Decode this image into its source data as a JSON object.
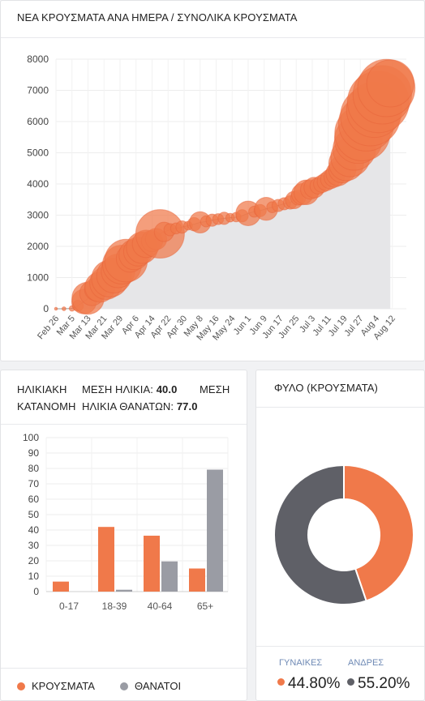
{
  "cases_card": {
    "title": "ΝΕΑ ΚΡΟΥΣΜΑΤΑ ΑΝΑ ΗΜΕΡΑ / ΣΥΝΟΛΙΚΑ ΚΡΟΥΣΜΑΤΑ"
  },
  "age_card": {
    "title": "ΗΛΙΚΙΑΚΗ ΚΑΤΑΝΟΜΗ",
    "mean_age_label": "ΜΕΣΗ ΗΛΙΚΙΑ:",
    "mean_age_value": "40.0",
    "mean_death_word": "ΜΕΣΗ",
    "mean_death_label": "ΗΛΙΚΙΑ ΘΑΝΑΤΩΝ:",
    "mean_death_value": "77.0",
    "legend": [
      {
        "label": "ΚΡΟΥΣΜΑΤΑ",
        "color": "#f0794a"
      },
      {
        "label": "ΘΑΝΑΤΟΙ",
        "color": "#9a9ca4"
      }
    ]
  },
  "sex_card": {
    "title": "ΦΥΛΟ (ΚΡΟΥΣΜΑΤΑ)",
    "female_label": "ΓΥΝΑΙΚΕΣ",
    "female_value": "44.80%",
    "male_label": "ΑΝΔΡΕΣ",
    "male_value": "55.20%"
  },
  "chart_data": [
    {
      "type": "scatter",
      "chart_id": "cases",
      "x_tick_labels": [
        "Feb 26",
        "Mar 5",
        "Mar 13",
        "Mar 21",
        "Mar 29",
        "Apr 6",
        "Apr 14",
        "Apr 22",
        "Apr 30",
        "May 8",
        "May 16",
        "May 24",
        "Jun 1",
        "Jun 9",
        "Jun 17",
        "Jun 25",
        "Jul 3",
        "Jul 11",
        "Jul 19",
        "Jul 27",
        "Aug 4",
        "Aug 12"
      ],
      "y_ticks": [
        0,
        1000,
        2000,
        3000,
        4000,
        5000,
        6000,
        7000,
        8000
      ],
      "ylim": [
        0,
        8000
      ],
      "xlim": [
        0,
        175
      ],
      "area_color": "#e6e6e8",
      "bubble_color": "#f0794a",
      "series": [
        {
          "name": "",
          "points": [
            {
              "day": 0,
              "total": 0,
              "new": 0
            },
            {
              "day": 4,
              "total": 0,
              "new": 1
            },
            {
              "day": 8,
              "total": 9,
              "new": 2
            },
            {
              "day": 11,
              "total": 99,
              "new": 8
            },
            {
              "day": 14,
              "total": 228,
              "new": 40
            },
            {
              "day": 16,
              "total": 340,
              "new": 68
            },
            {
              "day": 18,
              "total": 495,
              "new": 40
            },
            {
              "day": 20,
              "total": 624,
              "new": 35
            },
            {
              "day": 22,
              "total": 695,
              "new": 60
            },
            {
              "day": 25,
              "total": 821,
              "new": 70
            },
            {
              "day": 27,
              "total": 966,
              "new": 90
            },
            {
              "day": 29,
              "total": 1061,
              "new": 80
            },
            {
              "day": 31,
              "total": 1212,
              "new": 75
            },
            {
              "day": 33,
              "total": 1415,
              "new": 100
            },
            {
              "day": 35,
              "total": 1544,
              "new": 120
            },
            {
              "day": 37,
              "total": 1612,
              "new": 50
            },
            {
              "day": 39,
              "total": 1735,
              "new": 60
            },
            {
              "day": 41,
              "total": 1832,
              "new": 55
            },
            {
              "day": 43,
              "total": 1955,
              "new": 65
            },
            {
              "day": 45,
              "total": 2081,
              "new": 50
            },
            {
              "day": 48,
              "total": 2170,
              "new": 30
            },
            {
              "day": 50,
              "total": 2235,
              "new": 30
            },
            {
              "day": 52,
              "total": 2401,
              "new": 156
            },
            {
              "day": 54,
              "total": 2463,
              "new": 25
            },
            {
              "day": 57,
              "total": 2534,
              "new": 10
            },
            {
              "day": 60,
              "total": 2576,
              "new": 8
            },
            {
              "day": 63,
              "total": 2620,
              "new": 10
            },
            {
              "day": 66,
              "total": 2663,
              "new": 5
            },
            {
              "day": 69,
              "total": 2710,
              "new": 12
            },
            {
              "day": 72,
              "total": 2770,
              "new": 30
            },
            {
              "day": 75,
              "total": 2800,
              "new": 8
            },
            {
              "day": 78,
              "total": 2840,
              "new": 10
            },
            {
              "day": 81,
              "total": 2873,
              "new": 8
            },
            {
              "day": 84,
              "total": 2900,
              "new": 10
            },
            {
              "day": 87,
              "total": 2918,
              "new": 5
            },
            {
              "day": 90,
              "total": 2937,
              "new": 6
            },
            {
              "day": 93,
              "total": 2980,
              "new": 10
            },
            {
              "day": 96,
              "total": 3058,
              "new": 40
            },
            {
              "day": 99,
              "total": 3112,
              "new": 8
            },
            {
              "day": 102,
              "total": 3148,
              "new": 10
            },
            {
              "day": 105,
              "total": 3203,
              "new": 35
            },
            {
              "day": 108,
              "total": 3256,
              "new": 8
            },
            {
              "day": 111,
              "total": 3310,
              "new": 10
            },
            {
              "day": 114,
              "total": 3366,
              "new": 10
            },
            {
              "day": 117,
              "total": 3409,
              "new": 12
            },
            {
              "day": 119,
              "total": 3486,
              "new": 20
            },
            {
              "day": 121,
              "total": 3562,
              "new": 15
            },
            {
              "day": 123,
              "total": 3672,
              "new": 30
            },
            {
              "day": 125,
              "total": 3732,
              "new": 40
            },
            {
              "day": 127,
              "total": 3826,
              "new": 25
            },
            {
              "day": 129,
              "total": 3883,
              "new": 28
            },
            {
              "day": 131,
              "total": 3939,
              "new": 18
            },
            {
              "day": 133,
              "total": 4007,
              "new": 20
            },
            {
              "day": 135,
              "total": 4077,
              "new": 22
            },
            {
              "day": 137,
              "total": 4155,
              "new": 25
            },
            {
              "day": 139,
              "total": 4227,
              "new": 28
            },
            {
              "day": 141,
              "total": 4336,
              "new": 40
            },
            {
              "day": 143,
              "total": 4477,
              "new": 50
            },
            {
              "day": 145,
              "total": 4662,
              "new": 80
            },
            {
              "day": 147,
              "total": 4855,
              "new": 100
            },
            {
              "day": 149,
              "total": 5123,
              "new": 120
            },
            {
              "day": 151,
              "total": 5421,
              "new": 150
            },
            {
              "day": 153,
              "total": 5623,
              "new": 200
            },
            {
              "day": 155,
              "total": 5942,
              "new": 203
            },
            {
              "day": 157,
              "total": 6177,
              "new": 235
            },
            {
              "day": 159,
              "total": 6381,
              "new": 204
            },
            {
              "day": 161,
              "total": 6632,
              "new": 251
            },
            {
              "day": 163,
              "total": 6858,
              "new": 226
            },
            {
              "day": 165,
              "total": 7075,
              "new": 217
            },
            {
              "day": 167,
              "total": 7222,
              "new": 147
            }
          ]
        }
      ]
    },
    {
      "type": "bar",
      "chart_id": "age",
      "categories": [
        "0-17",
        "18-39",
        "40-64",
        "65+"
      ],
      "series": [
        {
          "name": "ΚΡΟΥΣΜΑΤΑ",
          "color": "#f0794a",
          "values": [
            6.5,
            42,
            36.3,
            15
          ]
        },
        {
          "name": "ΘΑΝΑΤΟΙ",
          "color": "#9a9ca4",
          "values": [
            0,
            1.2,
            19.6,
            79.2
          ]
        }
      ],
      "y_ticks": [
        0,
        10,
        20,
        30,
        40,
        50,
        60,
        70,
        80,
        90,
        100
      ],
      "ylim": [
        0,
        100
      ]
    },
    {
      "type": "pie",
      "chart_id": "sex",
      "donut": true,
      "slices": [
        {
          "label": "ΓΥΝΑΙΚΕΣ",
          "value": 44.8,
          "color": "#f0794a"
        },
        {
          "label": "ΑΝΔΡΕΣ",
          "value": 55.2,
          "color": "#5f6067"
        }
      ]
    }
  ]
}
